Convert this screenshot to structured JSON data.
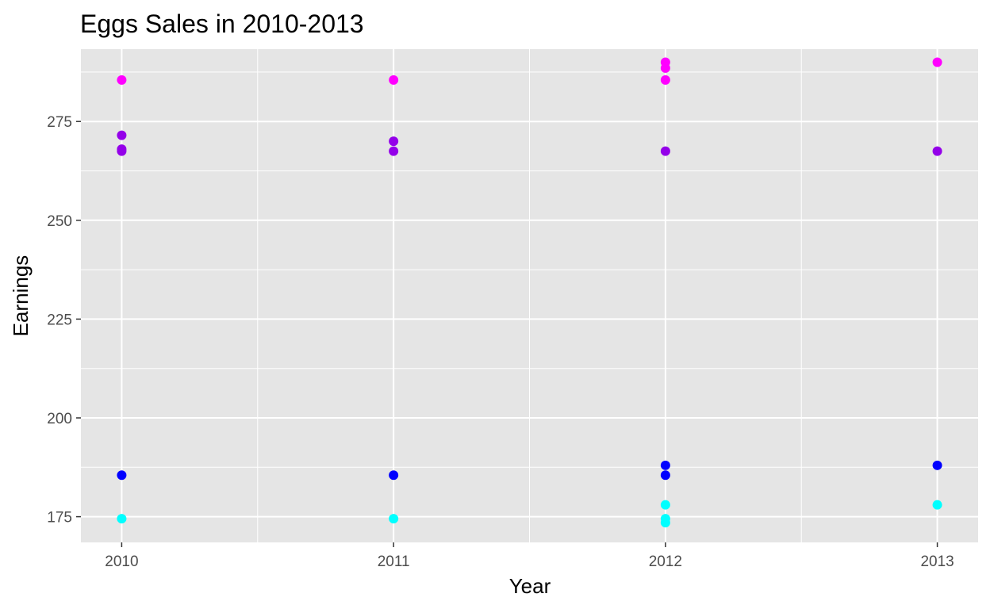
{
  "chart_data": {
    "type": "scatter",
    "title": "Eggs Sales in 2010-2013",
    "xlabel": "Year",
    "ylabel": "Earnings",
    "x_ticks": [
      2010,
      2011,
      2012,
      2013
    ],
    "y_ticks": [
      175,
      200,
      225,
      250,
      275
    ],
    "xlim": [
      2009.85,
      2013.15
    ],
    "ylim": [
      168.5,
      293.3
    ],
    "grid": true,
    "legend": "none",
    "background": "#e5e5e5",
    "series": [
      {
        "color": "#ff00ff",
        "points": [
          [
            2010,
            285.5
          ],
          [
            2011,
            285.5
          ],
          [
            2012,
            285.5
          ],
          [
            2012,
            288.5
          ],
          [
            2012,
            290
          ],
          [
            2013,
            290
          ]
        ]
      },
      {
        "color": "#9400e9",
        "points": [
          [
            2010,
            267.5
          ],
          [
            2010,
            268
          ],
          [
            2010,
            271.5
          ],
          [
            2011,
            267.5
          ],
          [
            2011,
            270
          ],
          [
            2012,
            267.5
          ],
          [
            2013,
            267.5
          ]
        ]
      },
      {
        "color": "#0000ff",
        "points": [
          [
            2010,
            185.5
          ],
          [
            2011,
            185.5
          ],
          [
            2012,
            185.5
          ],
          [
            2012,
            188
          ],
          [
            2013,
            188
          ]
        ]
      },
      {
        "color": "#00ffff",
        "points": [
          [
            2010,
            174.5
          ],
          [
            2011,
            174.5
          ],
          [
            2012,
            173.5
          ],
          [
            2012,
            174.5
          ],
          [
            2012,
            178
          ],
          [
            2013,
            178
          ]
        ]
      }
    ]
  }
}
